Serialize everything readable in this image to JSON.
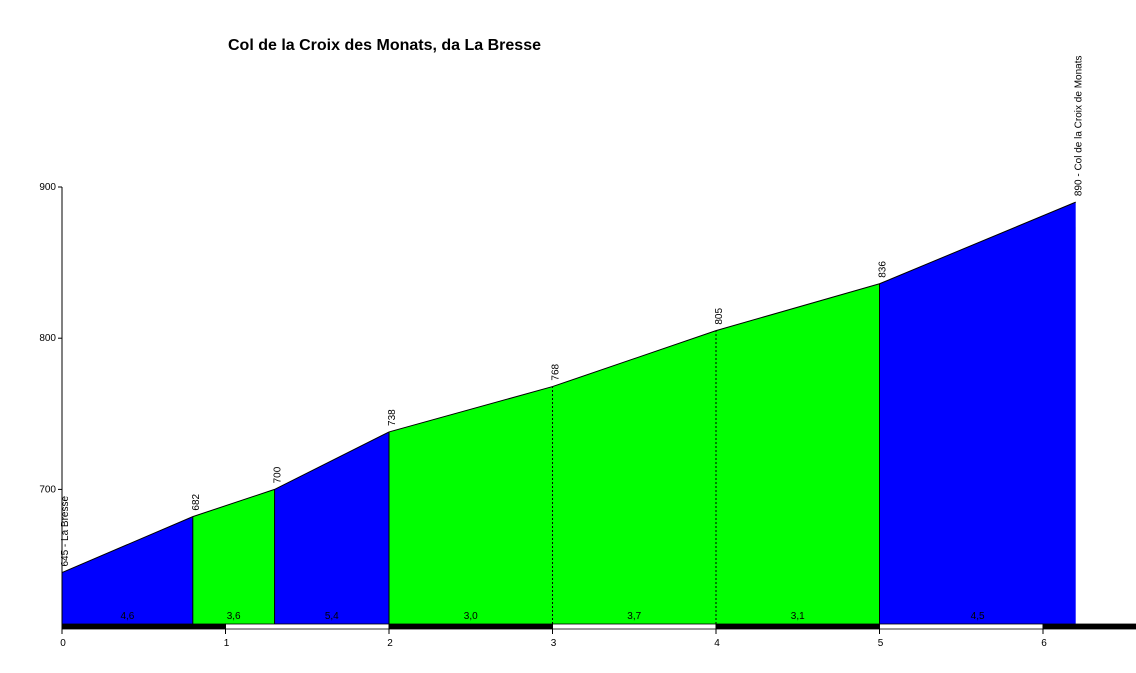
{
  "chart_data": {
    "type": "area",
    "title": "Col de la Croix des Monats, da La Bresse",
    "xlabel": "",
    "ylabel": "",
    "xlim": [
      0,
      6.6
    ],
    "ylim": [
      615,
      900
    ],
    "x_ticks": [
      "0",
      "1",
      "2",
      "3",
      "4",
      "5",
      "6"
    ],
    "y_ticks": [
      "700",
      "800",
      "900"
    ],
    "profile": [
      {
        "x": 0.0,
        "y": 645
      },
      {
        "x": 0.8,
        "y": 682
      },
      {
        "x": 1.3,
        "y": 700
      },
      {
        "x": 2.0,
        "y": 738
      },
      {
        "x": 3.0,
        "y": 768
      },
      {
        "x": 4.0,
        "y": 805
      },
      {
        "x": 5.0,
        "y": 836
      },
      {
        "x": 6.2,
        "y": 890
      }
    ],
    "segments": [
      {
        "from": 0.0,
        "to": 0.8,
        "gradient": "4,6",
        "color": "#0000ff"
      },
      {
        "from": 0.8,
        "to": 1.3,
        "gradient": "3,6",
        "color": "#00ff00"
      },
      {
        "from": 1.3,
        "to": 2.0,
        "gradient": "5,4",
        "color": "#0000ff"
      },
      {
        "from": 2.0,
        "to": 3.0,
        "gradient": "3,0",
        "color": "#00ff00"
      },
      {
        "from": 3.0,
        "to": 4.0,
        "gradient": "3,7",
        "color": "#00ff00"
      },
      {
        "from": 4.0,
        "to": 5.0,
        "gradient": "3,1",
        "color": "#00ff00"
      },
      {
        "from": 5.0,
        "to": 6.2,
        "gradient": "4,5",
        "color": "#0000ff"
      }
    ],
    "elevation_labels": [
      {
        "x": 0.0,
        "y": 645,
        "text": "645 - La Bresse"
      },
      {
        "x": 0.8,
        "y": 682,
        "text": "682"
      },
      {
        "x": 1.3,
        "y": 700,
        "text": "700"
      },
      {
        "x": 2.0,
        "y": 738,
        "text": "738"
      },
      {
        "x": 3.0,
        "y": 768,
        "text": "768"
      },
      {
        "x": 4.0,
        "y": 805,
        "text": "805"
      },
      {
        "x": 5.0,
        "y": 836,
        "text": "836"
      },
      {
        "x": 6.2,
        "y": 890,
        "text": "890 - Col de la Croix de Monats"
      }
    ],
    "dashed_dividers": [
      3.0,
      4.0
    ]
  }
}
